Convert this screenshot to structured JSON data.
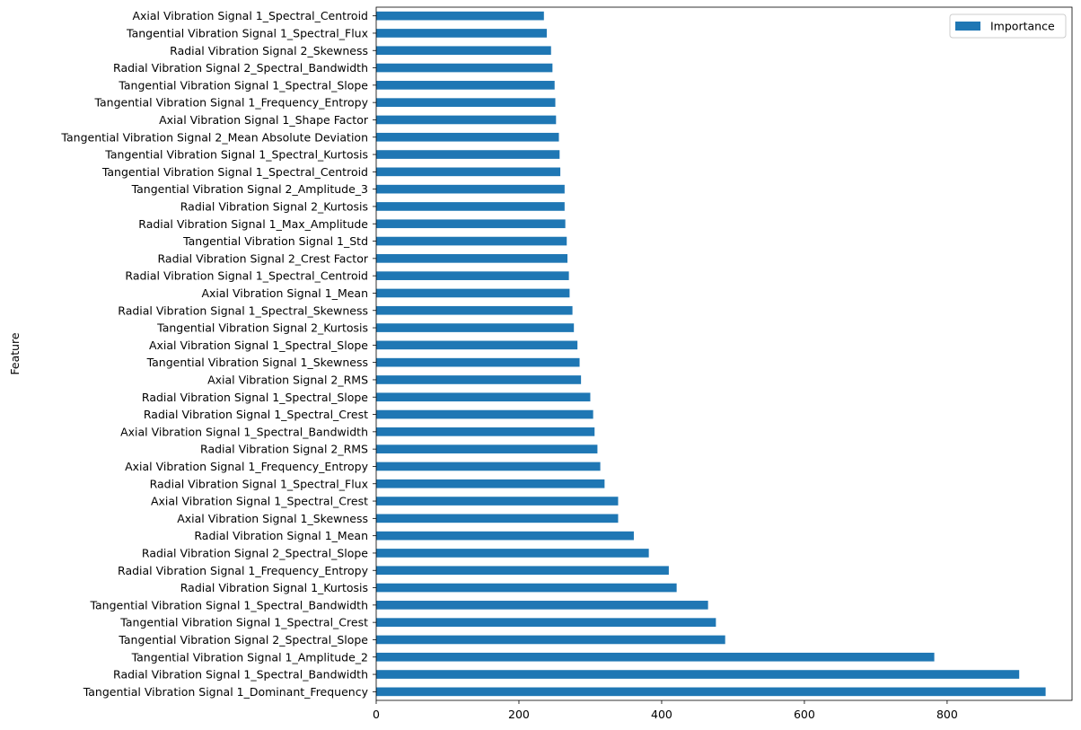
{
  "chart_data": {
    "type": "bar",
    "orientation": "horizontal",
    "ylabel": "Feature",
    "xlabel": "",
    "xlim": [
      0,
      975
    ],
    "xticks": [
      0,
      200,
      400,
      600,
      800
    ],
    "grid": false,
    "legend_position": "top-right",
    "bar_color": "#1f77b4",
    "series": [
      {
        "name": "Importance",
        "values": [
          938,
          901,
          782,
          489,
          476,
          465,
          421,
          410,
          382,
          361,
          339,
          339,
          320,
          314,
          310,
          306,
          304,
          300,
          287,
          285,
          282,
          277,
          275,
          271,
          270,
          268,
          267,
          265,
          264,
          264,
          258,
          257,
          256,
          252,
          251,
          250,
          247,
          245,
          239,
          235
        ]
      }
    ],
    "categories": [
      "Tangential Vibration Signal 1_Dominant_Frequency",
      "Radial Vibration Signal 1_Spectral_Bandwidth",
      "Tangential Vibration Signal 1_Amplitude_2",
      "Tangential Vibration Signal 2_Spectral_Slope",
      "Tangential Vibration Signal 1_Spectral_Crest",
      "Tangential Vibration Signal 1_Spectral_Bandwidth",
      "Radial Vibration Signal 1_Kurtosis",
      "Radial Vibration Signal 1_Frequency_Entropy",
      "Radial Vibration Signal 2_Spectral_Slope",
      "Radial Vibration Signal 1_Mean",
      "Axial Vibration Signal 1_Skewness",
      "Axial Vibration Signal 1_Spectral_Crest",
      "Radial Vibration Signal 1_Spectral_Flux",
      "Axial Vibration Signal 1_Frequency_Entropy",
      "Radial Vibration Signal 2_RMS",
      "Axial Vibration Signal 1_Spectral_Bandwidth",
      "Radial Vibration Signal 1_Spectral_Crest",
      "Radial Vibration Signal 1_Spectral_Slope",
      "Axial Vibration Signal 2_RMS",
      "Tangential Vibration Signal 1_Skewness",
      "Axial Vibration Signal 1_Spectral_Slope",
      "Tangential Vibration Signal 2_Kurtosis",
      "Radial Vibration Signal 1_Spectral_Skewness",
      "Axial Vibration Signal 1_Mean",
      "Radial Vibration Signal 1_Spectral_Centroid",
      "Radial Vibration Signal 2_Crest Factor",
      "Tangential Vibration Signal 1_Std",
      "Radial Vibration Signal 1_Max_Amplitude",
      "Radial Vibration Signal 2_Kurtosis",
      "Tangential Vibration Signal 2_Amplitude_3",
      "Tangential Vibration Signal 1_Spectral_Centroid",
      "Tangential Vibration Signal 1_Spectral_Kurtosis",
      "Tangential Vibration Signal 2_Mean Absolute Deviation",
      "Axial Vibration Signal 1_Shape Factor",
      "Tangential Vibration Signal 1_Frequency_Entropy",
      "Tangential Vibration Signal 1_Spectral_Slope",
      "Radial Vibration Signal 2_Spectral_Bandwidth",
      "Radial Vibration Signal 2_Skewness",
      "Tangential Vibration Signal 1_Spectral_Flux",
      "Axial Vibration Signal 1_Spectral_Centroid"
    ]
  }
}
